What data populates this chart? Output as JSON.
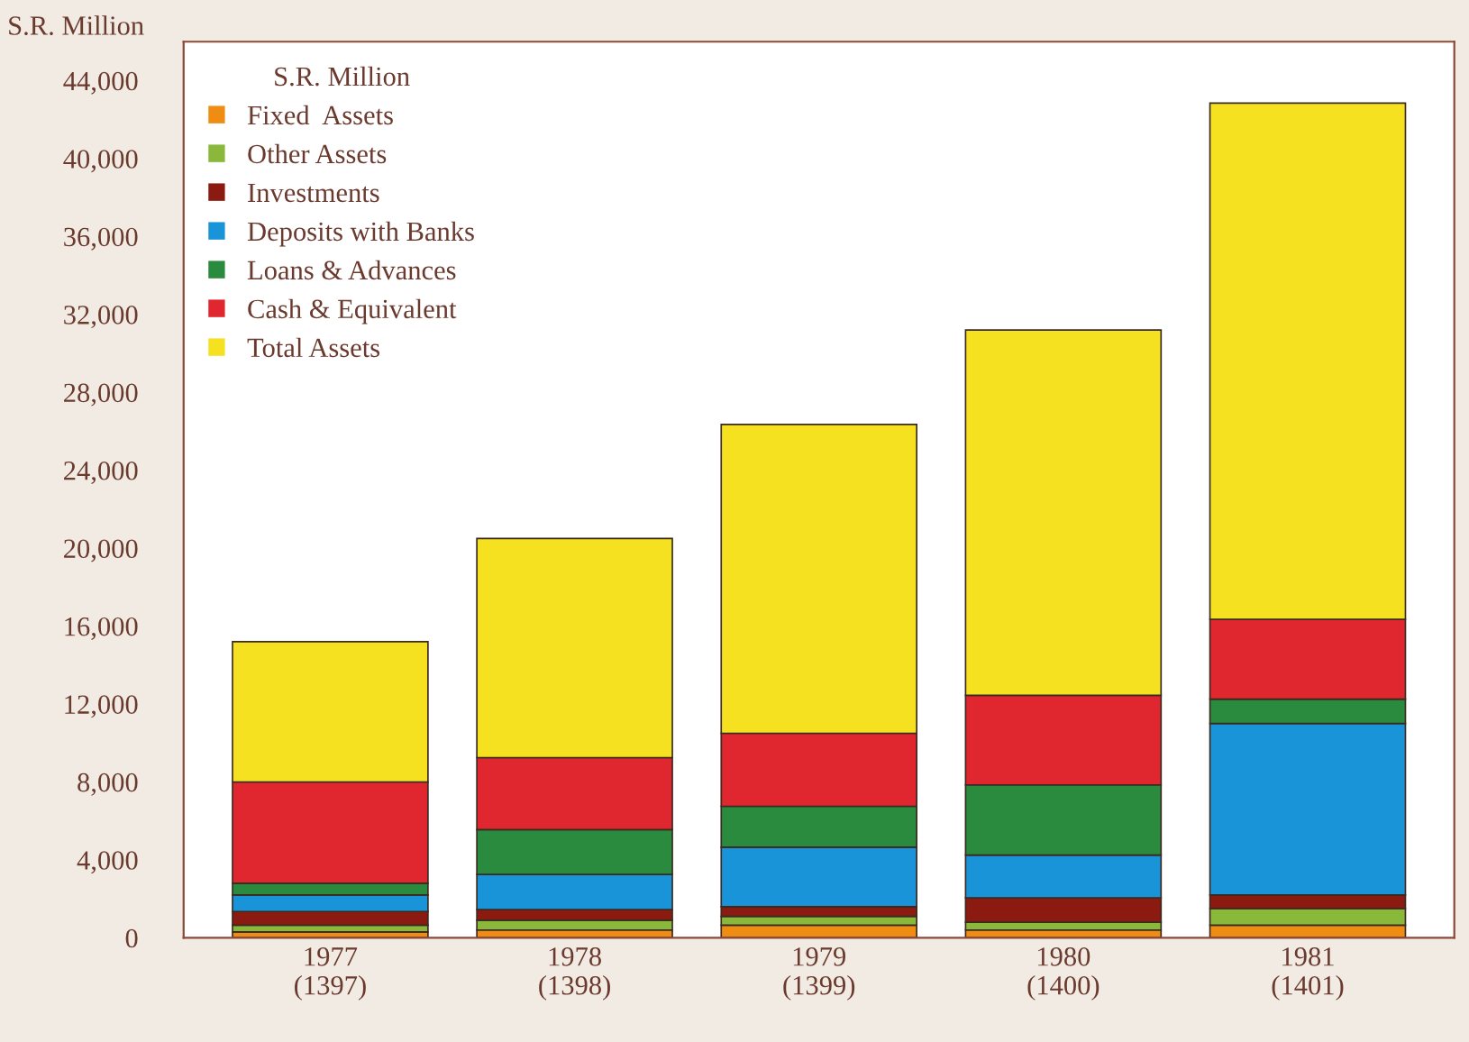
{
  "chart_data": {
    "type": "bar",
    "stacked": true,
    "ylabel": "S.R. Million",
    "legend_title": "S.R. Million",
    "legend": "top left",
    "grid": false,
    "categories": [
      "1977\n(1397)",
      "1978\n(1398)",
      "1979\n(1399)",
      "1980\n(1400)",
      "1981\n(1401)"
    ],
    "series": [
      {
        "name": "Fixed  Assets",
        "color": "#ef8c12",
        "values": [
          300,
          400,
          650,
          400,
          650
        ]
      },
      {
        "name": "Other Assets",
        "color": "#8ab83a",
        "values": [
          350,
          500,
          450,
          400,
          850
        ]
      },
      {
        "name": "Investments",
        "color": "#8b1a10",
        "values": [
          700,
          550,
          500,
          1250,
          700
        ]
      },
      {
        "name": "Deposits with Banks",
        "color": "#1a94d9",
        "values": [
          850,
          1800,
          3050,
          2200,
          8800
        ]
      },
      {
        "name": "Loans & Advances",
        "color": "#2a8a3e",
        "values": [
          600,
          2300,
          2100,
          3600,
          1250
        ]
      },
      {
        "name": "Cash & Equivalent",
        "color": "#e0262f",
        "values": [
          5200,
          3700,
          3750,
          4600,
          4100
        ]
      },
      {
        "name": "Total Assets",
        "color": "#f5e11f",
        "values": [
          7200,
          11250,
          15850,
          18750,
          26500
        ]
      }
    ],
    "ylim": [
      0,
      46000
    ],
    "yticks": [
      {
        "value": 0,
        "label": "0"
      },
      {
        "value": 4000,
        "label": "4,000"
      },
      {
        "value": 8000,
        "label": "8,000"
      },
      {
        "value": 12000,
        "label": "12,000"
      },
      {
        "value": 16000,
        "label": "16,000"
      },
      {
        "value": 20000,
        "label": "20,000"
      },
      {
        "value": 24000,
        "label": "24,000"
      },
      {
        "value": 28000,
        "label": "28,000"
      },
      {
        "value": 32000,
        "label": "32,000"
      },
      {
        "value": 36000,
        "label": "36,000"
      },
      {
        "value": 40000,
        "label": "40,000"
      },
      {
        "value": 44000,
        "label": "44,000"
      }
    ]
  }
}
